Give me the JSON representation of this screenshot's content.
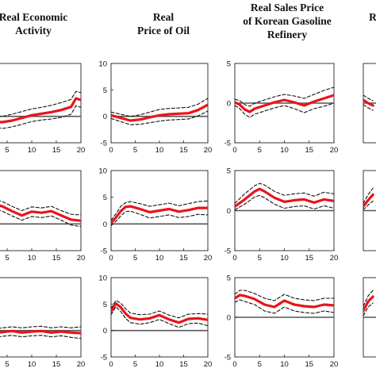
{
  "column_titles": [
    [
      "Real Economic",
      "Activity"
    ],
    [
      "Real",
      "Price of Oil"
    ],
    [
      "Real Sales Price",
      "of Korean Gasoline",
      "Refinery"
    ],
    [
      "R"
    ]
  ],
  "colors": {
    "response": "#e8141b",
    "band": "#111111",
    "zero_line": "#555555",
    "axis": "#222222"
  },
  "chart_data": [
    {
      "type": "line",
      "row": 1,
      "col": 1,
      "xticks": [
        5,
        10,
        15,
        20
      ],
      "yticks": [],
      "xlim": [
        0,
        20
      ],
      "ylim": [
        -5,
        10
      ],
      "series": [
        {
          "role": "response",
          "x": [
            0,
            2,
            4,
            6,
            8,
            10,
            12,
            14,
            16,
            18,
            19,
            20
          ],
          "y": [
            -0.6,
            -0.9,
            -1.1,
            -0.8,
            -0.3,
            0.2,
            0.5,
            0.8,
            1.2,
            1.8,
            3.4,
            3.1
          ]
        },
        {
          "role": "upper",
          "x": [
            0,
            2,
            4,
            6,
            8,
            10,
            12,
            14,
            16,
            18,
            19,
            20
          ],
          "y": [
            0.3,
            0.1,
            0,
            0.4,
            0.9,
            1.4,
            1.7,
            2.1,
            2.6,
            3.2,
            4.7,
            4.5
          ]
        },
        {
          "role": "lower",
          "x": [
            0,
            2,
            4,
            6,
            8,
            10,
            12,
            14,
            16,
            18,
            19,
            20
          ],
          "y": [
            -1.5,
            -1.9,
            -2.3,
            -2,
            -1.5,
            -1,
            -0.7,
            -0.5,
            -0.2,
            0.4,
            2,
            1.7
          ]
        }
      ]
    },
    {
      "type": "line",
      "row": 1,
      "col": 2,
      "xticks": [
        0,
        5,
        10,
        15,
        20
      ],
      "yticks": [
        10,
        5,
        0,
        -5
      ],
      "xlim": [
        0,
        20
      ],
      "ylim": [
        -5,
        10
      ],
      "series": [
        {
          "role": "response",
          "x": [
            0,
            2,
            4,
            6,
            8,
            10,
            12,
            14,
            16,
            18,
            20
          ],
          "y": [
            0.2,
            -0.3,
            -0.8,
            -0.6,
            -0.2,
            0.2,
            0.4,
            0.5,
            0.6,
            1.2,
            2.2
          ]
        },
        {
          "role": "upper",
          "x": [
            0,
            2,
            4,
            6,
            8,
            10,
            12,
            14,
            16,
            18,
            20
          ],
          "y": [
            0.8,
            0.4,
            0,
            0.3,
            0.8,
            1.3,
            1.5,
            1.6,
            1.7,
            2.3,
            3.4
          ]
        },
        {
          "role": "lower",
          "x": [
            0,
            2,
            4,
            6,
            8,
            10,
            12,
            14,
            16,
            18,
            20
          ],
          "y": [
            -0.4,
            -1,
            -1.6,
            -1.5,
            -1.2,
            -0.9,
            -0.7,
            -0.6,
            -0.5,
            0.1,
            1
          ]
        }
      ]
    },
    {
      "type": "line",
      "row": 1,
      "col": 3,
      "xticks": [
        0,
        5,
        10,
        15,
        20
      ],
      "yticks": [
        5,
        0,
        -5
      ],
      "xlim": [
        0,
        20
      ],
      "ylim": [
        -5,
        5
      ],
      "series": [
        {
          "role": "response",
          "x": [
            0,
            1,
            2,
            3,
            4,
            6,
            8,
            10,
            12,
            14,
            16,
            18,
            20
          ],
          "y": [
            0.1,
            -0.2,
            -0.8,
            -1.1,
            -0.7,
            -0.3,
            0.1,
            0.4,
            0.1,
            -0.3,
            0.2,
            0.6,
            1
          ]
        },
        {
          "role": "upper",
          "x": [
            0,
            1,
            2,
            3,
            4,
            6,
            8,
            10,
            12,
            14,
            16,
            18,
            20
          ],
          "y": [
            0.5,
            0.3,
            -0.2,
            -0.4,
            0,
            0.4,
            0.8,
            1.1,
            0.9,
            0.6,
            1.1,
            1.6,
            2
          ]
        },
        {
          "role": "lower",
          "x": [
            0,
            1,
            2,
            3,
            4,
            6,
            8,
            10,
            12,
            14,
            16,
            18,
            20
          ],
          "y": [
            -0.3,
            -0.7,
            -1.4,
            -1.8,
            -1.4,
            -1,
            -0.6,
            -0.3,
            -0.7,
            -1.2,
            -0.7,
            -0.4,
            0
          ]
        }
      ]
    },
    {
      "type": "line",
      "row": 1,
      "col": 4,
      "xticks": [],
      "yticks": [],
      "xlim": [
        0,
        20
      ],
      "ylim": [
        -5,
        5
      ],
      "series": [
        {
          "role": "response",
          "x": [
            0,
            1,
            2
          ],
          "y": [
            0.4,
            0,
            -0.3
          ]
        },
        {
          "role": "upper",
          "x": [
            0,
            1,
            2
          ],
          "y": [
            1,
            0.6,
            0.3
          ]
        },
        {
          "role": "lower",
          "x": [
            0,
            1,
            2
          ],
          "y": [
            -0.2,
            -0.6,
            -0.9
          ]
        }
      ]
    },
    {
      "type": "line",
      "row": 2,
      "col": 1,
      "xticks": [
        5,
        10,
        15,
        20
      ],
      "yticks": [],
      "xlim": [
        0,
        20
      ],
      "ylim": [
        -5,
        10
      ],
      "series": [
        {
          "role": "response",
          "x": [
            0,
            2,
            4,
            6,
            8,
            10,
            12,
            14,
            16,
            18,
            20
          ],
          "y": [
            4.2,
            3.8,
            3.3,
            2.4,
            1.6,
            2.3,
            2.1,
            2.4,
            1.6,
            0.8,
            0.6
          ]
        },
        {
          "role": "upper",
          "x": [
            0,
            2,
            4,
            6,
            8,
            10,
            12,
            14,
            16,
            18,
            20
          ],
          "y": [
            5.1,
            4.6,
            4.2,
            3.3,
            2.5,
            3.2,
            3,
            3.3,
            2.5,
            1.8,
            1.7
          ]
        },
        {
          "role": "lower",
          "x": [
            0,
            2,
            4,
            6,
            8,
            10,
            12,
            14,
            16,
            18,
            20
          ],
          "y": [
            3.3,
            3,
            2.4,
            1.5,
            0.7,
            1.4,
            1.2,
            1.5,
            0.7,
            -0.2,
            -0.5
          ]
        }
      ]
    },
    {
      "type": "line",
      "row": 2,
      "col": 2,
      "xticks": [
        0,
        5,
        10,
        15,
        20
      ],
      "yticks": [
        10,
        5,
        0,
        -5
      ],
      "xlim": [
        0,
        20
      ],
      "ylim": [
        -5,
        10
      ],
      "series": [
        {
          "role": "response",
          "x": [
            0,
            1,
            2,
            3,
            4,
            6,
            8,
            10,
            12,
            14,
            16,
            18,
            20
          ],
          "y": [
            0.2,
            1.2,
            2.4,
            3.2,
            3.3,
            2.8,
            2.2,
            2.5,
            2.8,
            2.3,
            2.6,
            3,
            3
          ]
        },
        {
          "role": "upper",
          "x": [
            0,
            1,
            2,
            3,
            4,
            6,
            8,
            10,
            12,
            14,
            16,
            18,
            20
          ],
          "y": [
            0.7,
            1.9,
            3.3,
            4,
            4.2,
            3.8,
            3.3,
            3.6,
            3.9,
            3.4,
            3.8,
            4.2,
            4.3
          ]
        },
        {
          "role": "lower",
          "x": [
            0,
            1,
            2,
            3,
            4,
            6,
            8,
            10,
            12,
            14,
            16,
            18,
            20
          ],
          "y": [
            -0.3,
            0.5,
            1.5,
            2.3,
            2.4,
            1.8,
            1.1,
            1.4,
            1.7,
            1.2,
            1.4,
            1.8,
            1.7
          ]
        }
      ]
    },
    {
      "type": "line",
      "row": 2,
      "col": 3,
      "xticks": [
        0,
        5,
        10,
        15,
        20
      ],
      "yticks": [
        5,
        0,
        -5
      ],
      "xlim": [
        0,
        20
      ],
      "ylim": [
        -5,
        5
      ],
      "series": [
        {
          "role": "response",
          "x": [
            0,
            2,
            4,
            5,
            6,
            8,
            10,
            12,
            14,
            16,
            18,
            20
          ],
          "y": [
            0.5,
            1.4,
            2.4,
            2.7,
            2.4,
            1.6,
            1.1,
            1.3,
            1.4,
            1,
            1.4,
            1.2
          ]
        },
        {
          "role": "upper",
          "x": [
            0,
            2,
            4,
            5,
            6,
            8,
            10,
            12,
            14,
            16,
            18,
            20
          ],
          "y": [
            0.9,
            2.1,
            3.1,
            3.4,
            3.2,
            2.4,
            1.9,
            2.1,
            2.2,
            1.8,
            2.3,
            2.1
          ]
        },
        {
          "role": "lower",
          "x": [
            0,
            2,
            4,
            5,
            6,
            8,
            10,
            12,
            14,
            16,
            18,
            20
          ],
          "y": [
            0.1,
            0.8,
            1.7,
            1.9,
            1.6,
            0.8,
            0.3,
            0.5,
            0.6,
            0.2,
            0.6,
            0.3
          ]
        }
      ]
    },
    {
      "type": "line",
      "row": 2,
      "col": 4,
      "xticks": [],
      "yticks": [],
      "xlim": [
        0,
        20
      ],
      "ylim": [
        -5,
        5
      ],
      "series": [
        {
          "role": "response",
          "x": [
            0,
            1,
            2
          ],
          "y": [
            0.5,
            1.3,
            2
          ]
        },
        {
          "role": "upper",
          "x": [
            0,
            1,
            2
          ],
          "y": [
            0.9,
            2,
            2.8
          ]
        },
        {
          "role": "lower",
          "x": [
            0,
            1,
            2
          ],
          "y": [
            0.1,
            0.7,
            1.2
          ]
        }
      ]
    },
    {
      "type": "line",
      "row": 3,
      "col": 1,
      "xticks": [
        5,
        10,
        15,
        20
      ],
      "yticks": [],
      "xlim": [
        0,
        20
      ],
      "ylim": [
        -5,
        10
      ],
      "series": [
        {
          "role": "response",
          "x": [
            0,
            2,
            4,
            6,
            8,
            10,
            12,
            14,
            16,
            18,
            20
          ],
          "y": [
            -0.4,
            -0.6,
            -0.3,
            -0.1,
            -0.4,
            -0.2,
            -0.1,
            -0.4,
            -0.2,
            -0.4,
            -0.5
          ]
        },
        {
          "role": "upper",
          "x": [
            0,
            2,
            4,
            6,
            8,
            10,
            12,
            14,
            16,
            18,
            20
          ],
          "y": [
            0.4,
            0.2,
            0.5,
            0.7,
            0.5,
            0.7,
            0.8,
            0.5,
            0.7,
            0.5,
            0.7
          ]
        },
        {
          "role": "lower",
          "x": [
            0,
            2,
            4,
            6,
            8,
            10,
            12,
            14,
            16,
            18,
            20
          ],
          "y": [
            -1.2,
            -1.4,
            -1.1,
            -0.9,
            -1.2,
            -1,
            -0.9,
            -1.2,
            -1,
            -1.3,
            -1.5
          ]
        }
      ]
    },
    {
      "type": "line",
      "row": 3,
      "col": 2,
      "xticks": [
        0,
        5,
        10,
        15,
        20
      ],
      "yticks": [
        10,
        5,
        0,
        -5
      ],
      "xlim": [
        0,
        20
      ],
      "ylim": [
        -5,
        10
      ],
      "series": [
        {
          "role": "response",
          "x": [
            0,
            1,
            2,
            3,
            4,
            6,
            8,
            10,
            12,
            14,
            16,
            18,
            20
          ],
          "y": [
            3.6,
            5.1,
            4.4,
            3.2,
            2.4,
            2.1,
            2.3,
            2.9,
            2.1,
            1.5,
            2.2,
            2.3,
            2
          ]
        },
        {
          "role": "upper",
          "x": [
            0,
            1,
            2,
            3,
            4,
            6,
            8,
            10,
            12,
            14,
            16,
            18,
            20
          ],
          "y": [
            4.2,
            5.7,
            5.2,
            4.1,
            3.3,
            3,
            3.1,
            3.7,
            2.9,
            2.4,
            3.1,
            3.2,
            3.1
          ]
        },
        {
          "role": "lower",
          "x": [
            0,
            1,
            2,
            3,
            4,
            6,
            8,
            10,
            12,
            14,
            16,
            18,
            20
          ],
          "y": [
            3,
            4.5,
            3.6,
            2.3,
            1.5,
            1.2,
            1.5,
            2.1,
            1.3,
            0.6,
            1.3,
            1.4,
            0.9
          ]
        }
      ]
    },
    {
      "type": "line",
      "row": 3,
      "col": 3,
      "xticks": [
        0,
        5,
        10,
        15,
        20
      ],
      "yticks": [
        5,
        0,
        -5
      ],
      "xlim": [
        0,
        20
      ],
      "ylim": [
        -5,
        5
      ],
      "series": [
        {
          "role": "response",
          "x": [
            0,
            1,
            2,
            4,
            6,
            8,
            10,
            12,
            14,
            16,
            18,
            20
          ],
          "y": [
            2.4,
            2.8,
            2.7,
            2.3,
            1.6,
            1.3,
            2.1,
            1.6,
            1.4,
            1.3,
            1.6,
            1.5
          ]
        },
        {
          "role": "upper",
          "x": [
            0,
            1,
            2,
            4,
            6,
            8,
            10,
            12,
            14,
            16,
            18,
            20
          ],
          "y": [
            2.9,
            3.4,
            3.4,
            3,
            2.4,
            2.1,
            2.9,
            2.4,
            2.2,
            2.1,
            2.4,
            2.4
          ]
        },
        {
          "role": "lower",
          "x": [
            0,
            1,
            2,
            4,
            6,
            8,
            10,
            12,
            14,
            16,
            18,
            20
          ],
          "y": [
            1.9,
            2.2,
            2,
            1.6,
            0.8,
            0.5,
            1.3,
            0.8,
            0.6,
            0.5,
            0.8,
            0.6
          ]
        }
      ]
    },
    {
      "type": "line",
      "row": 3,
      "col": 4,
      "xticks": [],
      "yticks": [],
      "xlim": [
        0,
        20
      ],
      "ylim": [
        -5,
        5
      ],
      "series": [
        {
          "role": "response",
          "x": [
            0,
            1,
            2
          ],
          "y": [
            0.8,
            2,
            2.6
          ]
        },
        {
          "role": "upper",
          "x": [
            0,
            1,
            2
          ],
          "y": [
            1.4,
            2.7,
            3.4
          ]
        },
        {
          "role": "lower",
          "x": [
            0,
            1,
            2
          ],
          "y": [
            0.2,
            1.3,
            1.8
          ]
        }
      ]
    }
  ]
}
